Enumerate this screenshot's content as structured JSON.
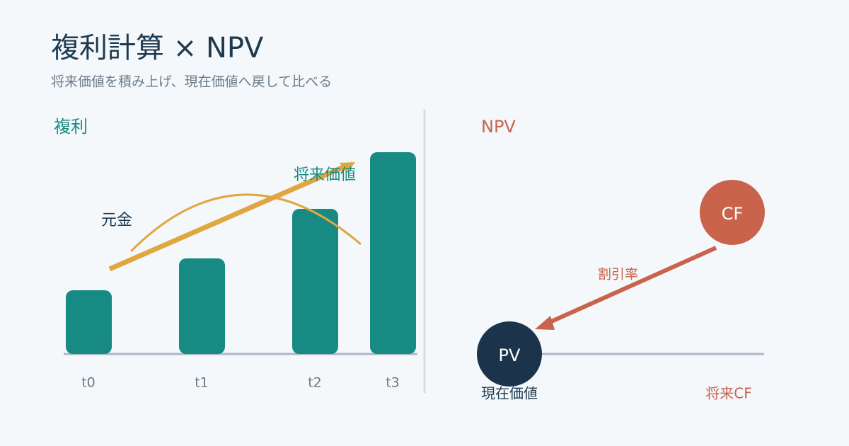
{
  "header": {
    "title": "複利計算 × NPV",
    "subtitle": "将来価値を積み上げ、現在価値へ戻して比べる"
  },
  "compound": {
    "heading": "複利",
    "principal_label": "元金",
    "future_value_label": "将来価値",
    "periods": [
      "t0",
      "t1",
      "t2",
      "t3"
    ]
  },
  "npv": {
    "heading": "NPV",
    "cf_node": "CF",
    "pv_node": "PV",
    "rate_label": "割引率",
    "pv_caption": "現在価値",
    "cf_caption": "将来CF"
  }
}
